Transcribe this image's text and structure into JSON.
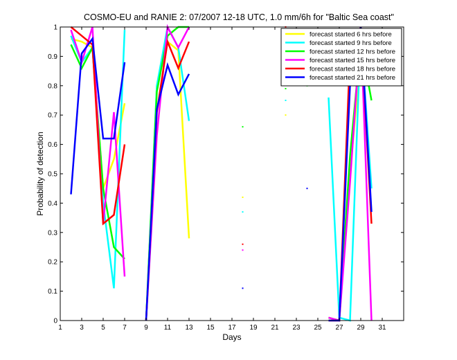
{
  "chart_data": {
    "type": "line",
    "title": "COSMO-EU and RANIE 2: 07/2007 12-18 UTC, 1.0 mm/6h for \"Baltic Sea coast\"",
    "xlabel": "Days",
    "ylabel": "Probability of detection",
    "xlim": [
      1,
      33
    ],
    "ylim": [
      0,
      1
    ],
    "x_ticks": [
      1,
      3,
      5,
      7,
      9,
      11,
      13,
      15,
      17,
      19,
      21,
      23,
      25,
      27,
      29,
      31
    ],
    "y_ticks": [
      0,
      0.1,
      0.2,
      0.3,
      0.4,
      0.5,
      0.6,
      0.7,
      0.8,
      0.9,
      1
    ],
    "y_tick_labels": [
      "0",
      "0.1",
      "0.2",
      "0.3",
      "0.4",
      "0.5",
      "0.6",
      "0.7",
      "0.8",
      "0.9",
      "1"
    ],
    "grid": false,
    "legend_position": "top-right",
    "series": [
      {
        "name": "forecast started 6 hrs before",
        "color": "#ffff00",
        "segments": [
          [
            [
              2,
              0.96
            ],
            [
              3,
              0.95
            ],
            [
              4,
              0.93
            ],
            [
              5,
              0.45
            ],
            [
              6,
              0.55
            ],
            [
              7,
              0.74
            ]
          ],
          [
            [
              9,
              0.0
            ],
            [
              10,
              0.8
            ],
            [
              11,
              0.95
            ],
            [
              12,
              0.92
            ],
            [
              13,
              0.28
            ]
          ],
          [
            [
              26,
              0.01
            ],
            [
              27,
              0.0
            ],
            [
              28,
              0.5
            ],
            [
              29,
              0.9
            ],
            [
              30,
              0.9
            ]
          ]
        ],
        "points": [
          [
            18,
            0.42
          ],
          [
            22,
            0.7
          ]
        ]
      },
      {
        "name": "forecast started 9 hrs before",
        "color": "#00ffff",
        "segments": [
          [
            [
              2,
              0.97
            ],
            [
              3,
              0.88
            ],
            [
              4,
              0.93
            ],
            [
              5,
              0.4
            ],
            [
              6,
              0.11
            ],
            [
              7,
              0.99
            ]
          ],
          [
            [
              9,
              0.0
            ],
            [
              10,
              0.8
            ],
            [
              11,
              1.0
            ],
            [
              12,
              0.93
            ],
            [
              13,
              0.68
            ]
          ],
          [
            [
              26,
              0.76
            ],
            [
              27,
              0.01
            ],
            [
              28,
              0.0
            ],
            [
              29,
              0.99
            ],
            [
              30,
              0.45
            ]
          ]
        ],
        "points": [
          [
            18,
            0.37
          ],
          [
            22,
            0.75
          ],
          [
            24,
            0.81
          ]
        ]
      },
      {
        "name": "forecast started 12 hrs before",
        "color": "#00ff00",
        "segments": [
          [
            [
              2,
              0.94
            ],
            [
              3,
              0.86
            ],
            [
              4,
              0.93
            ],
            [
              5,
              0.45
            ],
            [
              6,
              0.25
            ],
            [
              7,
              0.21
            ]
          ],
          [
            [
              9,
              0.0
            ],
            [
              10,
              0.78
            ],
            [
              11,
              0.97
            ],
            [
              12,
              1.0
            ],
            [
              13,
              1.0
            ]
          ],
          [
            [
              26,
              0.01
            ],
            [
              27,
              0.0
            ],
            [
              28,
              0.56
            ],
            [
              29,
              0.95
            ],
            [
              30,
              0.75
            ]
          ]
        ],
        "points": [
          [
            18,
            0.66
          ],
          [
            22,
            0.79
          ],
          [
            24,
            0.8
          ]
        ]
      },
      {
        "name": "forecast started 15 hrs before",
        "color": "#ff00ff",
        "segments": [
          [
            [
              2,
              0.99
            ],
            [
              3,
              0.88
            ],
            [
              4,
              1.0
            ],
            [
              5,
              0.33
            ],
            [
              6,
              0.71
            ],
            [
              7,
              0.15
            ]
          ],
          [
            [
              9,
              0.0
            ],
            [
              10,
              0.63
            ],
            [
              11,
              1.0
            ],
            [
              12,
              0.93
            ],
            [
              13,
              1.0
            ]
          ],
          [
            [
              26,
              0.01
            ],
            [
              27,
              0.0
            ],
            [
              28,
              0.47
            ],
            [
              29,
              1.0
            ],
            [
              30,
              0.0
            ]
          ]
        ],
        "points": [
          [
            18,
            0.24
          ]
        ]
      },
      {
        "name": "forecast started 18 hrs before",
        "color": "#ff0000",
        "segments": [
          [
            [
              2,
              1.0
            ],
            [
              3,
              0.97
            ],
            [
              4,
              0.94
            ],
            [
              5,
              0.33
            ],
            [
              6,
              0.36
            ],
            [
              7,
              0.6
            ]
          ],
          [
            [
              9,
              0.0
            ],
            [
              10,
              0.71
            ],
            [
              11,
              0.95
            ],
            [
              12,
              0.86
            ],
            [
              13,
              0.95
            ]
          ],
          [
            [
              26,
              0.0
            ],
            [
              27,
              0.0
            ],
            [
              28,
              0.91
            ],
            [
              29,
              1.0
            ],
            [
              30,
              0.33
            ]
          ]
        ],
        "points": [
          [
            18,
            0.26
          ],
          [
            22,
            0.96
          ],
          [
            25,
            0.98
          ],
          [
            22,
            1.0
          ]
        ]
      },
      {
        "name": "forecast started 21 hrs before",
        "color": "#0000ff",
        "segments": [
          [
            [
              2,
              0.43
            ],
            [
              3,
              0.91
            ],
            [
              4,
              0.96
            ],
            [
              5,
              0.62
            ],
            [
              6,
              0.62
            ],
            [
              7,
              0.88
            ]
          ],
          [
            [
              9,
              0.0
            ],
            [
              10,
              0.72
            ],
            [
              11,
              0.87
            ],
            [
              12,
              0.77
            ],
            [
              13,
              0.84
            ]
          ],
          [
            [
              26,
              0.0
            ],
            [
              27,
              0.0
            ],
            [
              28,
              0.8
            ],
            [
              29,
              1.0
            ],
            [
              30,
              0.37
            ]
          ]
        ],
        "points": [
          [
            18,
            0.11
          ],
          [
            22,
            0.88
          ],
          [
            24,
            0.45
          ]
        ]
      }
    ]
  }
}
